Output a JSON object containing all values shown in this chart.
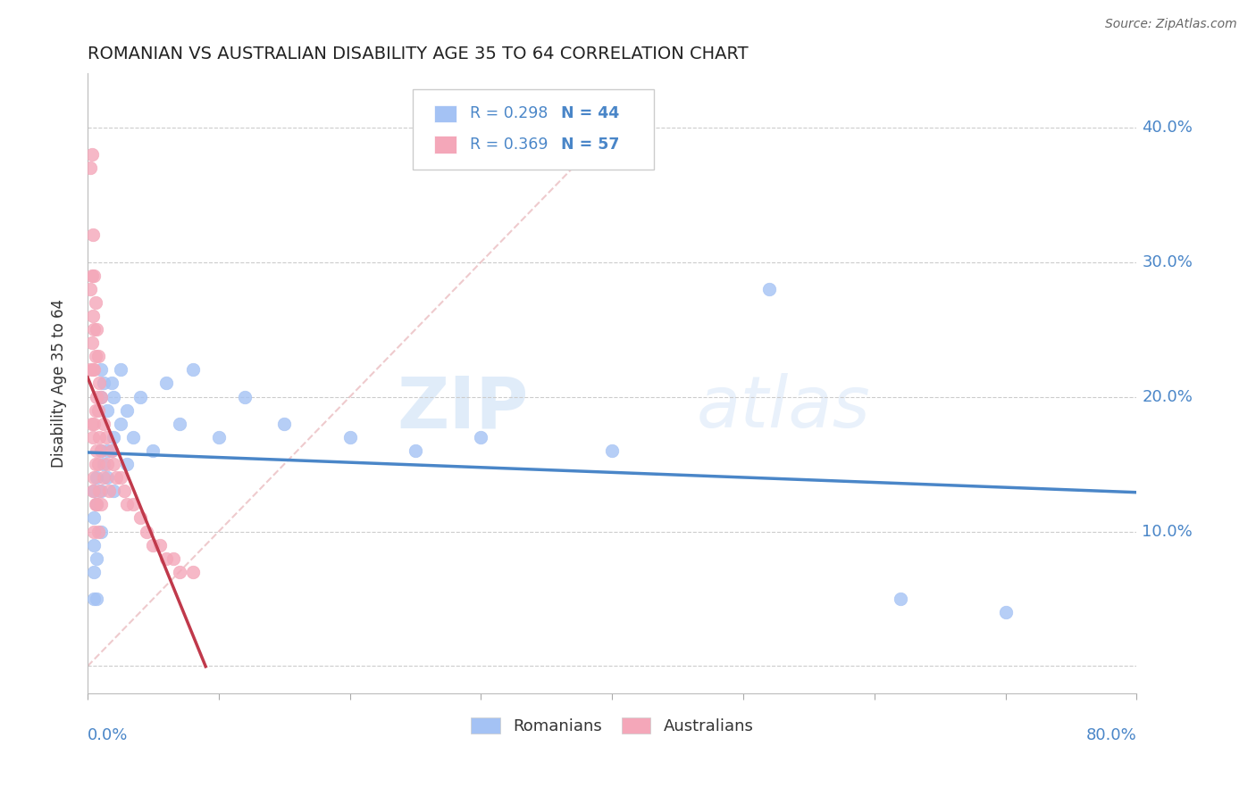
{
  "title": "ROMANIAN VS AUSTRALIAN DISABILITY AGE 35 TO 64 CORRELATION CHART",
  "source": "Source: ZipAtlas.com",
  "ylabel": "Disability Age 35 to 64",
  "xlim": [
    0.0,
    0.8
  ],
  "ylim": [
    -0.02,
    0.44
  ],
  "yticks": [
    0.0,
    0.1,
    0.2,
    0.3,
    0.4
  ],
  "ytick_labels": [
    "",
    "10.0%",
    "20.0%",
    "30.0%",
    "40.0%"
  ],
  "xticks": [
    0.0,
    0.1,
    0.2,
    0.3,
    0.4,
    0.5,
    0.6,
    0.7,
    0.8
  ],
  "legend_r_blue": "R = 0.298",
  "legend_n_blue": "N = 44",
  "legend_r_pink": "R = 0.369",
  "legend_n_pink": "N = 57",
  "legend_label_blue": "Romanians",
  "legend_label_pink": "Australians",
  "blue_color": "#a4c2f4",
  "pink_color": "#f4a7b9",
  "blue_line_color": "#4a86c8",
  "pink_line_color": "#c0394b",
  "title_color": "#222222",
  "axis_label_color": "#4a86c8",
  "watermark_zip": "ZIP",
  "watermark_atlas": "atlas",
  "blue_scatter_x": [
    0.005,
    0.005,
    0.005,
    0.005,
    0.005,
    0.007,
    0.007,
    0.007,
    0.007,
    0.01,
    0.01,
    0.01,
    0.01,
    0.01,
    0.012,
    0.012,
    0.015,
    0.015,
    0.015,
    0.018,
    0.018,
    0.02,
    0.02,
    0.02,
    0.025,
    0.025,
    0.03,
    0.03,
    0.035,
    0.04,
    0.05,
    0.06,
    0.07,
    0.08,
    0.1,
    0.12,
    0.15,
    0.2,
    0.25,
    0.3,
    0.4,
    0.52,
    0.62,
    0.7
  ],
  "blue_scatter_y": [
    0.13,
    0.11,
    0.09,
    0.07,
    0.05,
    0.14,
    0.12,
    0.08,
    0.05,
    0.22,
    0.2,
    0.16,
    0.13,
    0.1,
    0.21,
    0.15,
    0.19,
    0.16,
    0.14,
    0.21,
    0.16,
    0.2,
    0.17,
    0.13,
    0.22,
    0.18,
    0.19,
    0.15,
    0.17,
    0.2,
    0.16,
    0.21,
    0.18,
    0.22,
    0.17,
    0.2,
    0.18,
    0.17,
    0.16,
    0.17,
    0.16,
    0.28,
    0.05,
    0.04
  ],
  "pink_scatter_x": [
    0.002,
    0.002,
    0.002,
    0.003,
    0.003,
    0.003,
    0.003,
    0.004,
    0.004,
    0.004,
    0.004,
    0.004,
    0.005,
    0.005,
    0.005,
    0.005,
    0.005,
    0.005,
    0.006,
    0.006,
    0.006,
    0.006,
    0.006,
    0.007,
    0.007,
    0.007,
    0.007,
    0.008,
    0.008,
    0.008,
    0.008,
    0.009,
    0.009,
    0.009,
    0.01,
    0.01,
    0.01,
    0.012,
    0.012,
    0.014,
    0.015,
    0.016,
    0.018,
    0.02,
    0.022,
    0.025,
    0.028,
    0.03,
    0.035,
    0.04,
    0.045,
    0.05,
    0.055,
    0.06,
    0.065,
    0.07,
    0.08
  ],
  "pink_scatter_y": [
    0.37,
    0.28,
    0.22,
    0.38,
    0.29,
    0.24,
    0.18,
    0.32,
    0.26,
    0.22,
    0.17,
    0.13,
    0.29,
    0.25,
    0.22,
    0.18,
    0.14,
    0.1,
    0.27,
    0.23,
    0.19,
    0.15,
    0.12,
    0.25,
    0.2,
    0.16,
    0.12,
    0.23,
    0.19,
    0.15,
    0.1,
    0.21,
    0.17,
    0.13,
    0.2,
    0.16,
    0.12,
    0.18,
    0.14,
    0.17,
    0.15,
    0.13,
    0.16,
    0.15,
    0.14,
    0.14,
    0.13,
    0.12,
    0.12,
    0.11,
    0.1,
    0.09,
    0.09,
    0.08,
    0.08,
    0.07,
    0.07
  ]
}
